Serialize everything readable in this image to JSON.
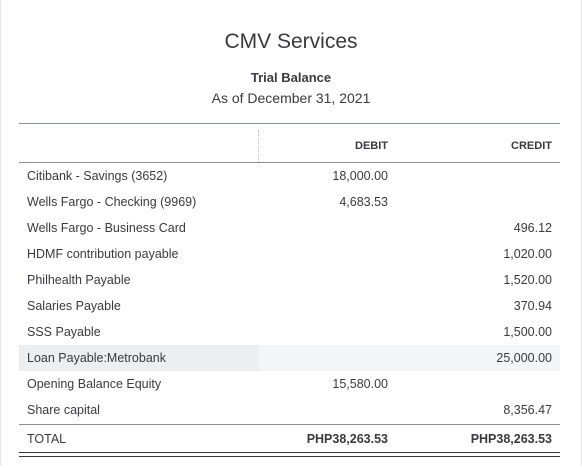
{
  "report": {
    "company": "CMV Services",
    "title": "Trial Balance",
    "date": "As of December 31, 2021"
  },
  "columns": {
    "debit": "DEBIT",
    "credit": "CREDIT"
  },
  "rows": [
    {
      "account": "Citibank - Savings (3652)",
      "debit": "18,000.00",
      "credit": ""
    },
    {
      "account": "Wells Fargo - Checking (9969)",
      "debit": "4,683.53",
      "credit": ""
    },
    {
      "account": "Wells Fargo - Business Card",
      "debit": "",
      "credit": "496.12"
    },
    {
      "account": "HDMF contribution payable",
      "debit": "",
      "credit": "1,020.00"
    },
    {
      "account": "Philhealth Payable",
      "debit": "",
      "credit": "1,520.00"
    },
    {
      "account": "Salaries Payable",
      "debit": "",
      "credit": "370.94"
    },
    {
      "account": "SSS Payable",
      "debit": "",
      "credit": "1,500.00"
    },
    {
      "account": "Loan Payable:Metrobank",
      "debit": "",
      "credit": "25,000.00"
    },
    {
      "account": "Opening Balance Equity",
      "debit": "15,580.00",
      "credit": ""
    },
    {
      "account": "Share capital",
      "debit": "",
      "credit": "8,356.47"
    }
  ],
  "total": {
    "label": "TOTAL",
    "debit": "PHP38,263.53",
    "credit": "PHP38,263.53"
  }
}
